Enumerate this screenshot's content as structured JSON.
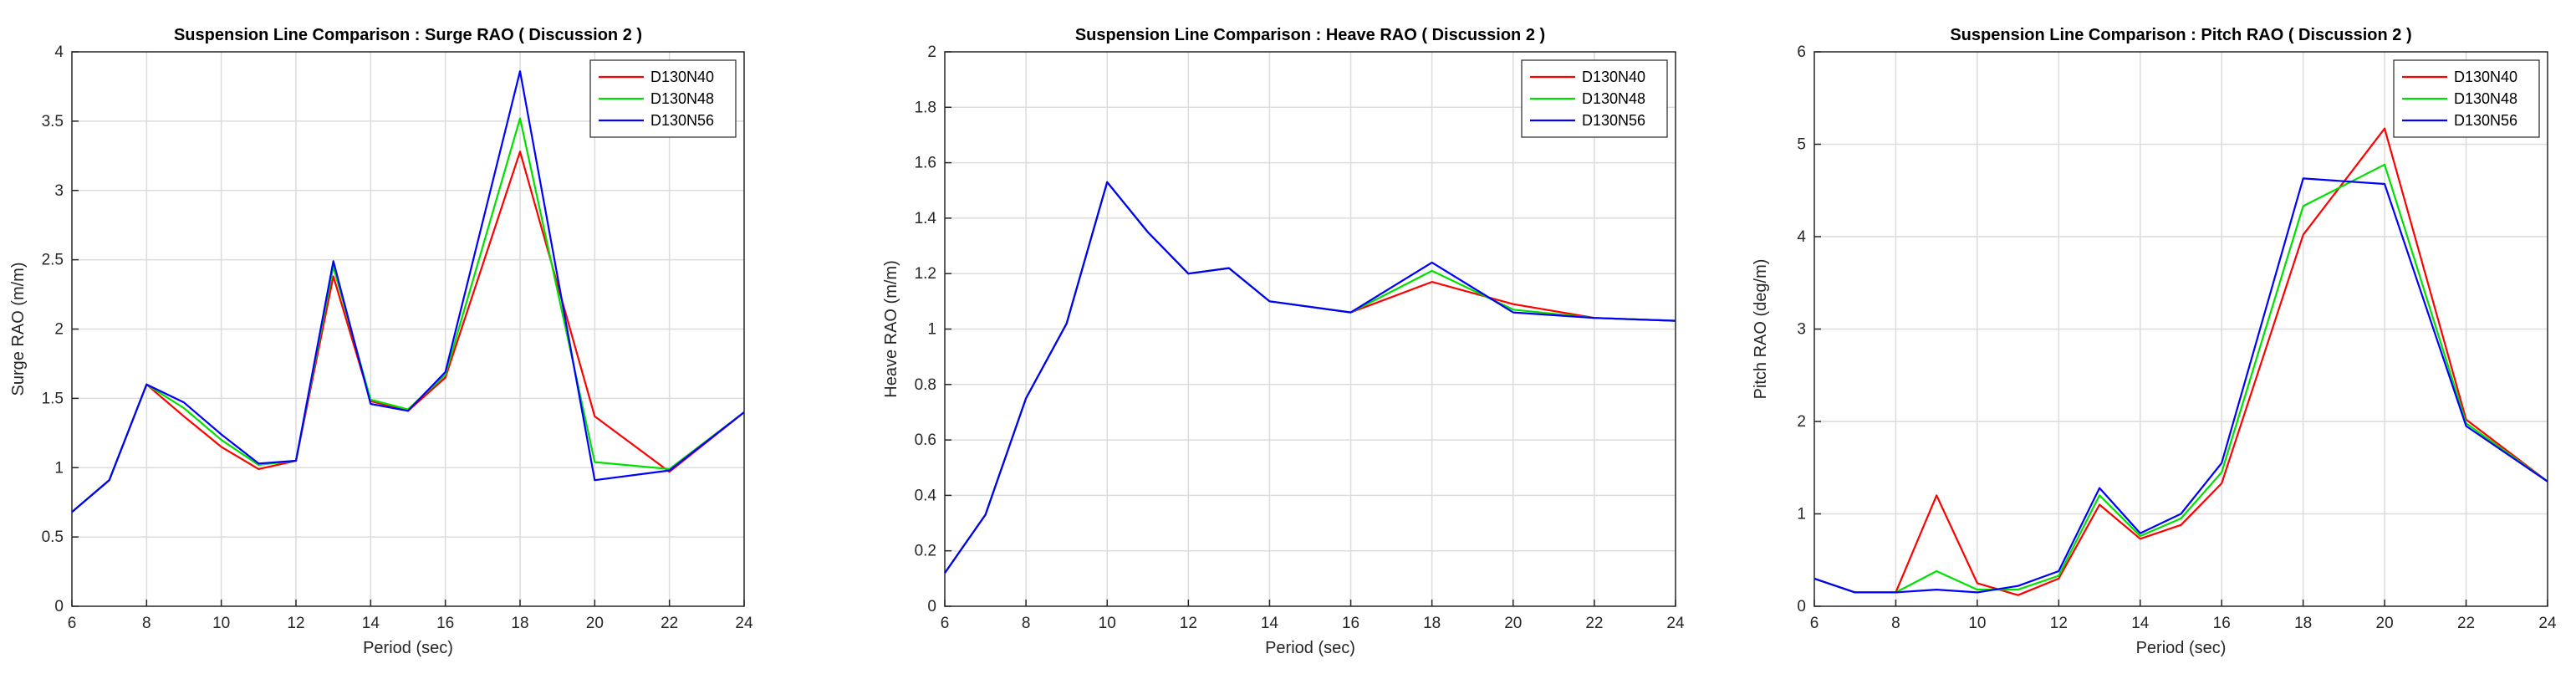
{
  "chart_data": [
    {
      "type": "line",
      "title": "Suspension Line Comparison : Surge RAO ( Discussion 2 )",
      "xlabel": "Period (sec)",
      "ylabel": "Surge RAO (m/m)",
      "xlim": [
        6,
        24
      ],
      "ylim": [
        0,
        4
      ],
      "xticks": [
        6,
        8,
        10,
        12,
        14,
        16,
        18,
        20,
        22,
        24
      ],
      "yticks": [
        0,
        0.5,
        1,
        1.5,
        2,
        2.5,
        3,
        3.5,
        4
      ],
      "xtick_labels": [
        "6",
        "8",
        "10",
        "12",
        "14",
        "16",
        "18",
        "20",
        "22",
        "24"
      ],
      "ytick_labels": [
        "0",
        "0.5",
        "1",
        "1.5",
        "2",
        "2.5",
        "3",
        "3.5",
        "4"
      ],
      "grid": true,
      "legend_position": "top-right",
      "x": [
        6,
        7,
        8,
        9,
        10,
        11,
        12,
        13,
        14,
        15,
        16,
        18,
        20,
        22,
        24
      ],
      "series": [
        {
          "name": "D130N40",
          "color": "#ff0000",
          "values": [
            0.68,
            0.91,
            1.6,
            1.37,
            1.15,
            0.99,
            1.05,
            2.38,
            1.48,
            1.41,
            1.65,
            3.28,
            1.37,
            0.97,
            1.4
          ]
        },
        {
          "name": "D130N48",
          "color": "#00e000",
          "values": [
            0.68,
            0.91,
            1.6,
            1.43,
            1.2,
            1.02,
            1.05,
            2.45,
            1.49,
            1.42,
            1.67,
            3.52,
            1.04,
            0.99,
            1.4
          ]
        },
        {
          "name": "D130N56",
          "color": "#0000ff",
          "values": [
            0.68,
            0.91,
            1.6,
            1.47,
            1.24,
            1.03,
            1.05,
            2.49,
            1.46,
            1.41,
            1.69,
            3.86,
            0.91,
            0.98,
            1.4
          ]
        }
      ]
    },
    {
      "type": "line",
      "title": "Suspension Line Comparison : Heave RAO ( Discussion 2 )",
      "xlabel": "Period (sec)",
      "ylabel": "Heave RAO (m/m)",
      "xlim": [
        6,
        24
      ],
      "ylim": [
        0,
        2
      ],
      "xticks": [
        6,
        8,
        10,
        12,
        14,
        16,
        18,
        20,
        22,
        24
      ],
      "yticks": [
        0,
        0.2,
        0.4,
        0.6,
        0.8,
        1,
        1.2,
        1.4,
        1.6,
        1.8,
        2
      ],
      "xtick_labels": [
        "6",
        "8",
        "10",
        "12",
        "14",
        "16",
        "18",
        "20",
        "22",
        "24"
      ],
      "ytick_labels": [
        "0",
        "0.2",
        "0.4",
        "0.6",
        "0.8",
        "1",
        "1.2",
        "1.4",
        "1.6",
        "1.8",
        "2"
      ],
      "grid": true,
      "legend_position": "top-right",
      "x": [
        6,
        7,
        8,
        9,
        10,
        11,
        12,
        13,
        14,
        16,
        18,
        20,
        22,
        24
      ],
      "series": [
        {
          "name": "D130N40",
          "color": "#ff0000",
          "values": [
            0.12,
            0.33,
            0.75,
            1.02,
            1.53,
            1.35,
            1.2,
            1.22,
            1.1,
            1.06,
            1.17,
            1.09,
            1.04,
            1.03
          ]
        },
        {
          "name": "D130N48",
          "color": "#00e000",
          "values": [
            0.12,
            0.33,
            0.75,
            1.02,
            1.53,
            1.35,
            1.2,
            1.22,
            1.1,
            1.06,
            1.21,
            1.07,
            1.04,
            1.03
          ]
        },
        {
          "name": "D130N56",
          "color": "#0000ff",
          "values": [
            0.12,
            0.33,
            0.75,
            1.02,
            1.53,
            1.35,
            1.2,
            1.22,
            1.1,
            1.06,
            1.24,
            1.06,
            1.04,
            1.03
          ]
        }
      ]
    },
    {
      "type": "line",
      "title": "Suspension Line Comparison : Pitch RAO ( Discussion 2 )",
      "xlabel": "Period (sec)",
      "ylabel": "Pitch RAO (deg/m)",
      "xlim": [
        6,
        24
      ],
      "ylim": [
        0,
        6
      ],
      "xticks": [
        6,
        8,
        10,
        12,
        14,
        16,
        18,
        20,
        22,
        24
      ],
      "yticks": [
        0,
        1,
        2,
        3,
        4,
        5,
        6
      ],
      "xtick_labels": [
        "6",
        "8",
        "10",
        "12",
        "14",
        "16",
        "18",
        "20",
        "22",
        "24"
      ],
      "ytick_labels": [
        "0",
        "1",
        "2",
        "3",
        "4",
        "5",
        "6"
      ],
      "grid": true,
      "legend_position": "top-right",
      "x": [
        6,
        7,
        8,
        9,
        10,
        11,
        12,
        13,
        14,
        15,
        16,
        18,
        20,
        22,
        24
      ],
      "series": [
        {
          "name": "D130N40",
          "color": "#ff0000",
          "values": [
            0.3,
            0.15,
            0.15,
            1.2,
            0.25,
            0.12,
            0.3,
            1.1,
            0.73,
            0.88,
            1.33,
            4.02,
            5.17,
            2.02,
            1.35
          ]
        },
        {
          "name": "D130N48",
          "color": "#00e000",
          "values": [
            0.3,
            0.15,
            0.15,
            0.38,
            0.18,
            0.18,
            0.33,
            1.2,
            0.76,
            0.95,
            1.45,
            4.33,
            4.78,
            1.98,
            1.35
          ]
        },
        {
          "name": "D130N56",
          "color": "#0000ff",
          "values": [
            0.3,
            0.15,
            0.15,
            0.18,
            0.15,
            0.22,
            0.38,
            1.28,
            0.79,
            1.0,
            1.55,
            4.63,
            4.57,
            1.95,
            1.35
          ]
        }
      ]
    }
  ]
}
